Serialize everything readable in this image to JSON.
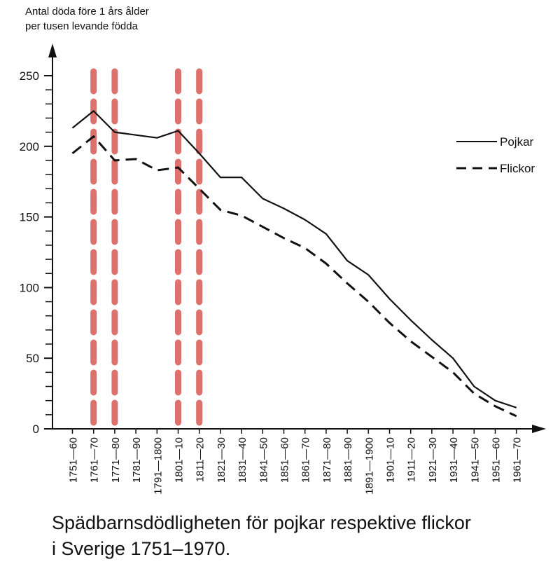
{
  "chart_data": {
    "type": "line",
    "ylabel_line1": "Antal döda före 1 års ålder",
    "ylabel_line2": "per tusen levande födda",
    "caption_line1": "Spädbarnsdödligheten för pojkar respektive flickor",
    "caption_line2": "i Sverige 1751–1970.",
    "categories": [
      "1751—60",
      "1761—70",
      "1771—80",
      "1781—90",
      "1791—1800",
      "1801—10",
      "1811—20",
      "1821—30",
      "1831—40",
      "1841—50",
      "1851—60",
      "1861—70",
      "1871—80",
      "1881—90",
      "1891—1900",
      "1901—10",
      "1911—20",
      "1921—30",
      "1931—40",
      "1941—50",
      "1951—60",
      "1961—70"
    ],
    "ylim": [
      0,
      250
    ],
    "yticks": [
      "0",
      "50",
      "100",
      "150",
      "200",
      "250"
    ],
    "ytick_values": [
      0,
      50,
      100,
      150,
      200,
      250
    ],
    "grid": false,
    "legend_placement": "top-right",
    "series": [
      {
        "name": "Pojkar",
        "style": "solid",
        "values": [
          213,
          225,
          210,
          208,
          206,
          211,
          195,
          178,
          178,
          163,
          156,
          148,
          138,
          119,
          109,
          92,
          77,
          63,
          50,
          30,
          20,
          15
        ]
      },
      {
        "name": "Flickor",
        "style": "dashed",
        "values": [
          195,
          207,
          190,
          191,
          183,
          185,
          170,
          155,
          151,
          143,
          135,
          128,
          117,
          103,
          90,
          75,
          62,
          51,
          40,
          25,
          16,
          9
        ]
      }
    ],
    "highlight_categories": [
      "1761—70",
      "1771—80",
      "1801—10",
      "1811—20"
    ],
    "highlight_color": "#d9625e",
    "line_color": "#111111"
  }
}
